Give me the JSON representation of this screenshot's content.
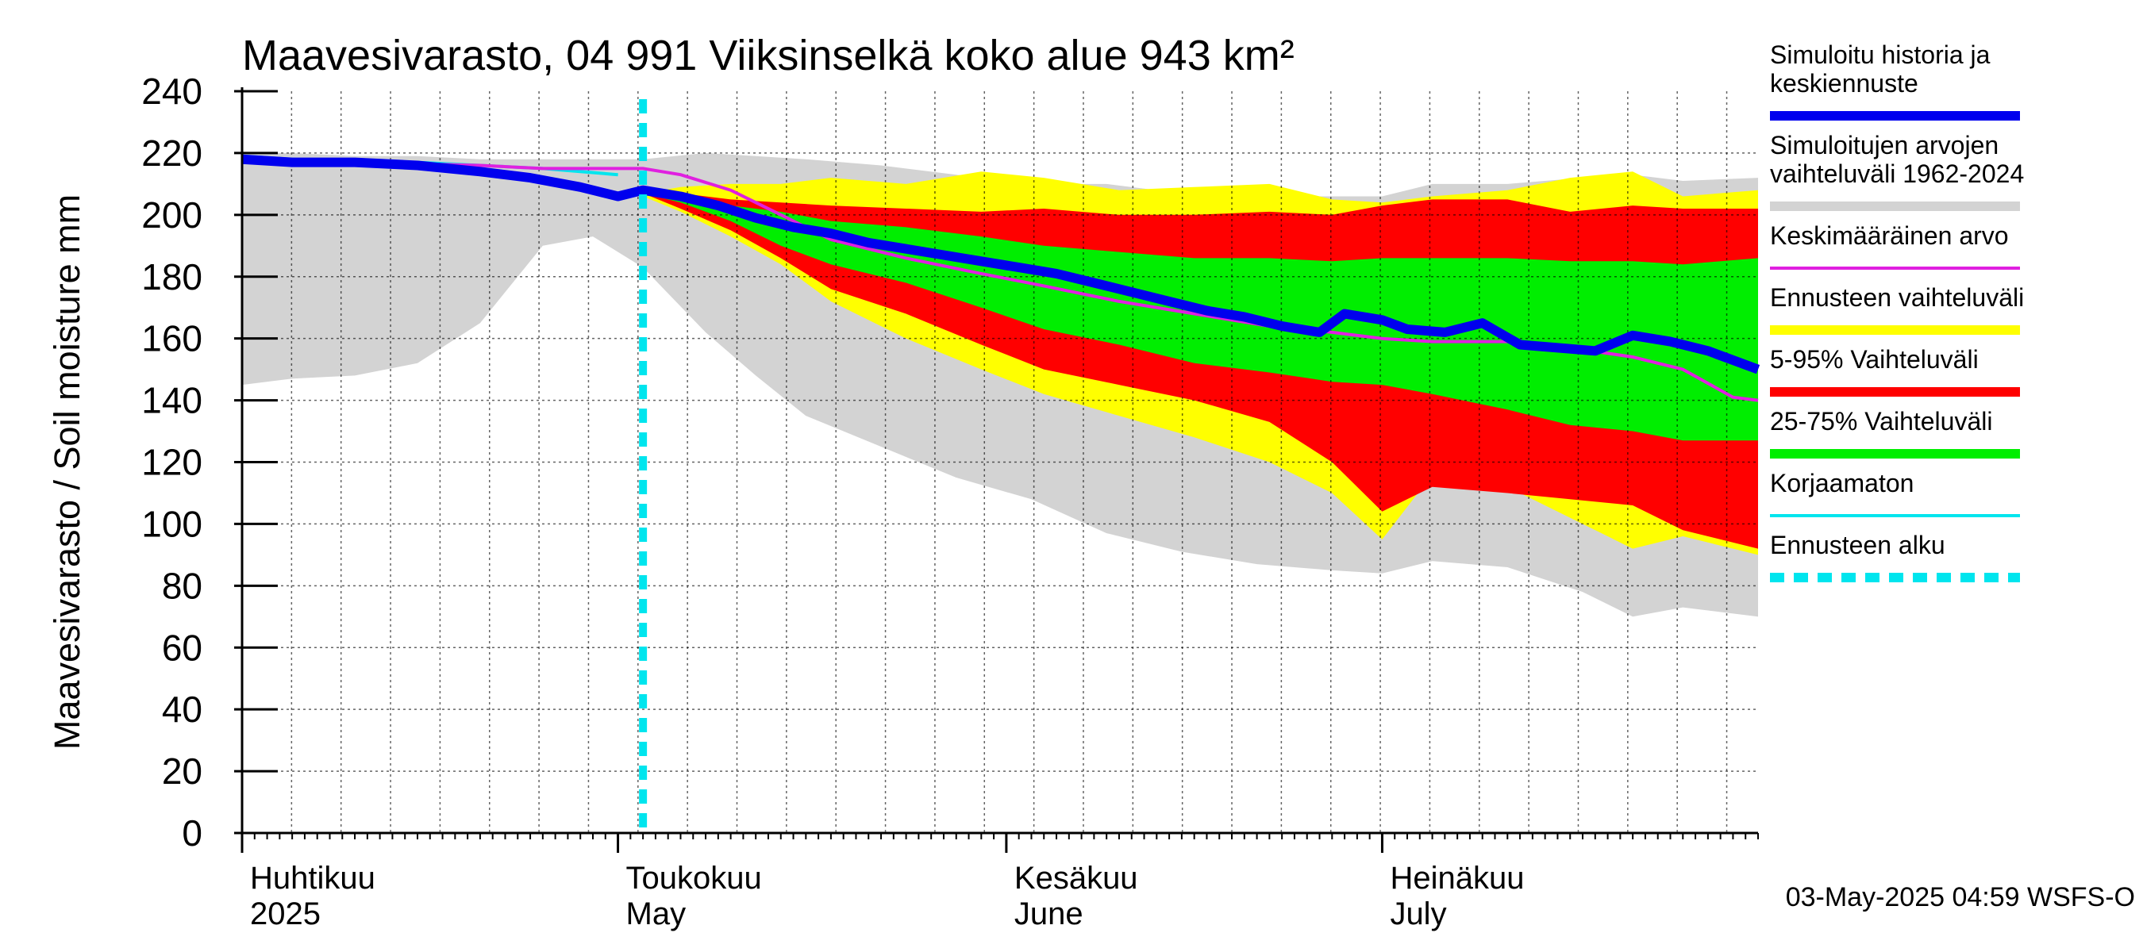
{
  "chart_data": {
    "type": "area",
    "title": "Maavesivarasto, 04 991 Viiksinselkä koko alue 943 km²",
    "ylabel": "Maavesivarasto / Soil moisture   mm",
    "ylim": [
      0,
      240
    ],
    "yticks": [
      0,
      20,
      40,
      60,
      80,
      100,
      120,
      140,
      160,
      180,
      200,
      220,
      240
    ],
    "xlim": [
      "2025-04-01",
      "2025-07-31"
    ],
    "grid": true,
    "legend_position": "right",
    "forecast_start": "2025-05-03",
    "x_axis_labels": [
      {
        "date": "2025-04-01",
        "fi": "Huhtikuu",
        "en": "2025"
      },
      {
        "date": "2025-05-01",
        "fi": "Toukokuu",
        "en": "May"
      },
      {
        "date": "2025-06-01",
        "fi": "Kesäkuu",
        "en": "June"
      },
      {
        "date": "2025-07-01",
        "fi": "Heinäkuu",
        "en": "July"
      }
    ],
    "timestamp": "03-May-2025 04:59 WSFS-O",
    "colors": {
      "history": "#0000ee",
      "range_all": "#d3d3d3",
      "mean": "#e020e0",
      "forecast_range": "#ffff00",
      "p5_95": "#ff0000",
      "p25_75": "#00ee00",
      "uncorrected": "#00e5ee",
      "forecast_start": "#00e5ee"
    },
    "legend": [
      {
        "key": "history",
        "label_lines": [
          "Simuloitu historia ja",
          "keskiennuste"
        ],
        "style": "thick"
      },
      {
        "key": "range_all",
        "label_lines": [
          "Simuloitujen arvojen",
          "vaihteluväli 1962-2024"
        ],
        "style": "thick"
      },
      {
        "key": "mean",
        "label_lines": [
          "Keskimääräinen arvo"
        ],
        "style": "thin"
      },
      {
        "key": "forecast_range",
        "label_lines": [
          "Ennusteen vaihteluväli"
        ],
        "style": "thick"
      },
      {
        "key": "p5_95",
        "label_lines": [
          "5-95% Vaihteluväli"
        ],
        "style": "thick"
      },
      {
        "key": "p25_75",
        "label_lines": [
          "25-75% Vaihteluväli"
        ],
        "style": "thick"
      },
      {
        "key": "uncorrected",
        "label_lines": [
          "Korjaamaton"
        ],
        "style": "thin"
      },
      {
        "key": "forecast_start",
        "label_lines": [
          "Ennusteen alku"
        ],
        "style": "dashed"
      }
    ],
    "series": {
      "range_all": {
        "x": [
          "2025-04-01",
          "2025-04-05",
          "2025-04-10",
          "2025-04-15",
          "2025-04-20",
          "2025-04-25",
          "2025-04-29",
          "2025-05-03",
          "2025-05-08",
          "2025-05-12",
          "2025-05-16",
          "2025-05-22",
          "2025-05-28",
          "2025-06-03",
          "2025-06-09",
          "2025-06-15",
          "2025-06-21",
          "2025-06-27",
          "2025-07-01",
          "2025-07-05",
          "2025-07-11",
          "2025-07-17",
          "2025-07-21",
          "2025-07-25",
          "2025-07-31"
        ],
        "low": [
          145,
          147,
          148,
          152,
          165,
          190,
          193,
          183,
          162,
          148,
          135,
          125,
          115,
          108,
          97,
          91,
          87,
          85,
          84,
          88,
          86,
          78,
          70,
          73,
          70
        ],
        "high": [
          220,
          220,
          219,
          219,
          218,
          218,
          218,
          218,
          220,
          219,
          218,
          216,
          213,
          210,
          210,
          207,
          206,
          206,
          206,
          210,
          210,
          212,
          213,
          211,
          212
        ]
      },
      "forecast_range": {
        "x": [
          "2025-05-03",
          "2025-05-06",
          "2025-05-10",
          "2025-05-14",
          "2025-05-18",
          "2025-05-24",
          "2025-05-30",
          "2025-06-04",
          "2025-06-10",
          "2025-06-16",
          "2025-06-22",
          "2025-06-27",
          "2025-07-01",
          "2025-07-05",
          "2025-07-11",
          "2025-07-16",
          "2025-07-21",
          "2025-07-25",
          "2025-07-31"
        ],
        "low": [
          206,
          201,
          193,
          184,
          172,
          160,
          150,
          142,
          135,
          128,
          120,
          110,
          95,
          116,
          112,
          102,
          92,
          96,
          90
        ],
        "high": [
          207,
          209,
          210,
          210,
          212,
          210,
          214,
          212,
          208,
          209,
          210,
          205,
          204,
          206,
          208,
          212,
          214,
          206,
          208
        ]
      },
      "p5_95": {
        "x": [
          "2025-05-03",
          "2025-05-06",
          "2025-05-10",
          "2025-05-14",
          "2025-05-18",
          "2025-05-24",
          "2025-05-30",
          "2025-06-04",
          "2025-06-10",
          "2025-06-16",
          "2025-06-22",
          "2025-06-27",
          "2025-07-01",
          "2025-07-05",
          "2025-07-11",
          "2025-07-16",
          "2025-07-21",
          "2025-07-25",
          "2025-07-31"
        ],
        "low": [
          207,
          202,
          195,
          186,
          176,
          168,
          158,
          150,
          145,
          140,
          133,
          120,
          104,
          112,
          110,
          108,
          106,
          98,
          92
        ],
        "high": [
          207,
          207,
          205,
          204,
          203,
          202,
          201,
          202,
          200,
          200,
          201,
          200,
          203,
          205,
          205,
          201,
          203,
          202,
          202
        ]
      },
      "p25_75": {
        "x": [
          "2025-05-03",
          "2025-05-06",
          "2025-05-10",
          "2025-05-14",
          "2025-05-18",
          "2025-05-24",
          "2025-05-30",
          "2025-06-04",
          "2025-06-10",
          "2025-06-16",
          "2025-06-22",
          "2025-06-27",
          "2025-07-01",
          "2025-07-05",
          "2025-07-11",
          "2025-07-16",
          "2025-07-21",
          "2025-07-25",
          "2025-07-31"
        ],
        "low": [
          207,
          204,
          198,
          190,
          184,
          178,
          170,
          163,
          158,
          152,
          149,
          146,
          145,
          142,
          137,
          132,
          130,
          127,
          127
        ],
        "high": [
          207,
          206,
          203,
          201,
          198,
          196,
          193,
          190,
          188,
          186,
          186,
          185,
          186,
          186,
          186,
          185,
          185,
          184,
          186
        ]
      },
      "mean": {
        "x": [
          "2025-04-01",
          "2025-04-10",
          "2025-04-20",
          "2025-04-25",
          "2025-05-01",
          "2025-05-03",
          "2025-05-06",
          "2025-05-10",
          "2025-05-14",
          "2025-05-18",
          "2025-05-24",
          "2025-05-30",
          "2025-06-04",
          "2025-06-10",
          "2025-06-16",
          "2025-06-22",
          "2025-06-27",
          "2025-07-01",
          "2025-07-05",
          "2025-07-11",
          "2025-07-16",
          "2025-07-21",
          "2025-07-25",
          "2025-07-29",
          "2025-07-31"
        ],
        "y": [
          217,
          217,
          216,
          215,
          215,
          215,
          213,
          208,
          200,
          192,
          186,
          181,
          177,
          172,
          168,
          164,
          162,
          160,
          159,
          159,
          157,
          154,
          150,
          141,
          140
        ]
      },
      "history": {
        "x": [
          "2025-04-01",
          "2025-04-05",
          "2025-04-10",
          "2025-04-15",
          "2025-04-20",
          "2025-04-24",
          "2025-04-28",
          "2025-05-01",
          "2025-05-03",
          "2025-05-06",
          "2025-05-09",
          "2025-05-12",
          "2025-05-15",
          "2025-05-18",
          "2025-05-21",
          "2025-05-24",
          "2025-05-27",
          "2025-05-30",
          "2025-06-02",
          "2025-06-05",
          "2025-06-08",
          "2025-06-11",
          "2025-06-14",
          "2025-06-17",
          "2025-06-20",
          "2025-06-23",
          "2025-06-26",
          "2025-06-28",
          "2025-07-01",
          "2025-07-03",
          "2025-07-06",
          "2025-07-09",
          "2025-07-12",
          "2025-07-15",
          "2025-07-18",
          "2025-07-21",
          "2025-07-24",
          "2025-07-27",
          "2025-07-31"
        ],
        "y": [
          218,
          217,
          217,
          216,
          214,
          212,
          209,
          206,
          208,
          206,
          203,
          199,
          196,
          194,
          191,
          189,
          187,
          185,
          183,
          181,
          178,
          175,
          172,
          169,
          167,
          164,
          162,
          168,
          166,
          163,
          162,
          165,
          158,
          157,
          156,
          161,
          159,
          156,
          150
        ]
      },
      "uncorrected": {
        "x": [
          "2025-04-01",
          "2025-04-05",
          "2025-04-10",
          "2025-04-15",
          "2025-04-20",
          "2025-04-25",
          "2025-04-28",
          "2025-05-01"
        ],
        "y": [
          219,
          218,
          217,
          217,
          216,
          215,
          214,
          213
        ]
      }
    }
  }
}
